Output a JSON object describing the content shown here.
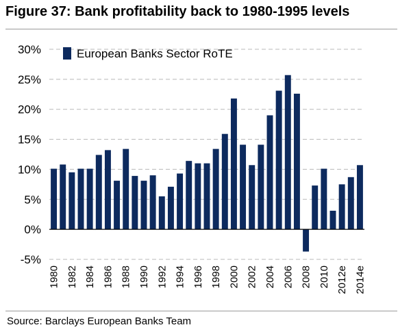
{
  "figure_title": "Figure 37: Bank profitability back to 1980-1995 levels",
  "source": "Source: Barclays European Banks Team",
  "colors": {
    "bar": "#0d2a5e",
    "grid": "#b8b8b8",
    "axis": "#000000"
  },
  "chart_data": {
    "type": "bar",
    "title": "",
    "xlabel": "",
    "ylabel": "",
    "ylim": [
      -5,
      30
    ],
    "yticks": [
      30,
      25,
      20,
      15,
      10,
      5,
      0,
      -5
    ],
    "ytick_labels": [
      "30%",
      "25%",
      "20%",
      "15%",
      "10%",
      "5%",
      "0%",
      "-5%"
    ],
    "grid": "horizontal dashed",
    "legend_position": "top-left",
    "categories": [
      "1980",
      "1981",
      "1982",
      "1983",
      "1984",
      "1985",
      "1986",
      "1987",
      "1988",
      "1989",
      "1990",
      "1991",
      "1992",
      "1993",
      "1994",
      "1995",
      "1996",
      "1997",
      "1998",
      "1999",
      "2000",
      "2001",
      "2002",
      "2003",
      "2004",
      "2005",
      "2006",
      "2007",
      "2008",
      "2009",
      "2010",
      "2011",
      "2012e",
      "2013e",
      "2014e"
    ],
    "xtick_labels": [
      "1980",
      "",
      "1982",
      "",
      "1984",
      "",
      "1986",
      "",
      "1988",
      "",
      "1990",
      "",
      "1992",
      "",
      "1994",
      "",
      "1996",
      "",
      "1998",
      "",
      "2000",
      "",
      "2002",
      "",
      "2004",
      "",
      "2006",
      "",
      "2008",
      "",
      "2010",
      "",
      "2012e",
      "",
      "2014e"
    ],
    "series": [
      {
        "name": "European Banks Sector RoTE",
        "values": [
          10.1,
          10.8,
          9.5,
          10.1,
          10.1,
          12.4,
          13.2,
          8.1,
          13.4,
          8.9,
          8.1,
          9.0,
          5.5,
          7.1,
          9.3,
          11.4,
          11.0,
          11.0,
          13.4,
          15.9,
          21.8,
          14.1,
          10.7,
          14.1,
          19.0,
          23.1,
          25.7,
          22.6,
          -3.7,
          7.3,
          10.1,
          3.1,
          7.5,
          8.7,
          10.7
        ]
      }
    ]
  }
}
